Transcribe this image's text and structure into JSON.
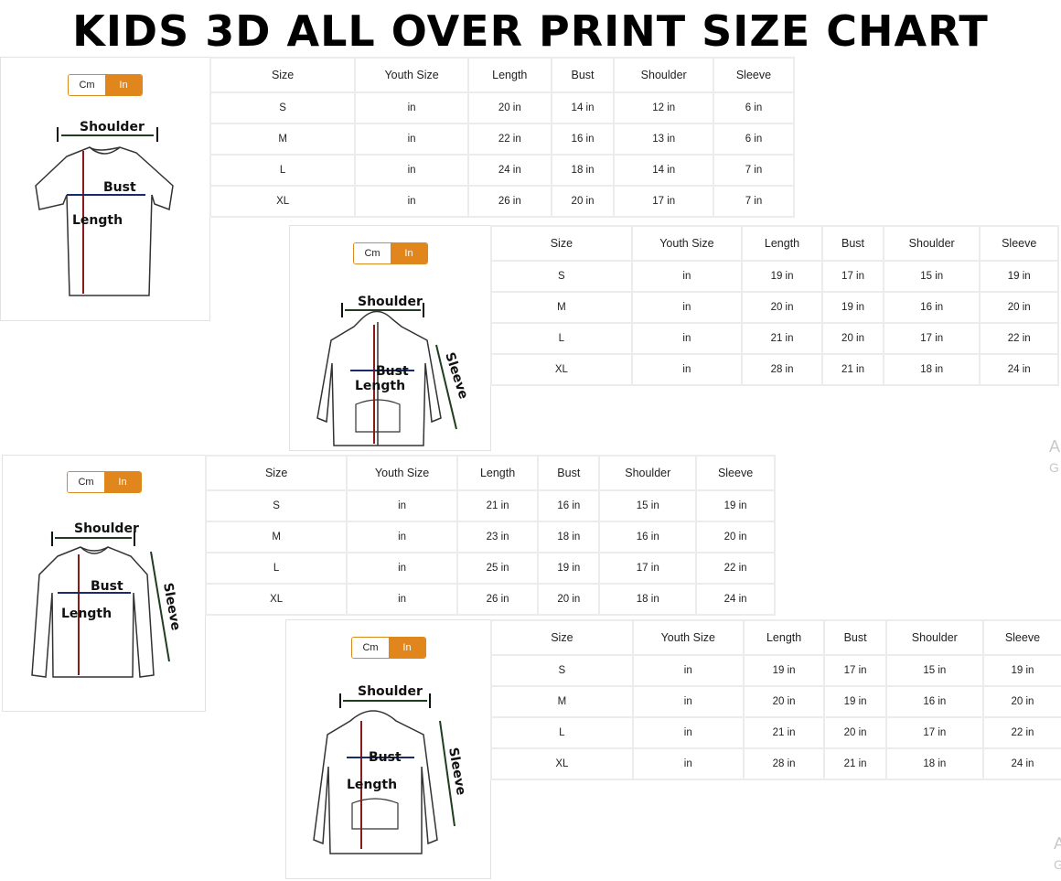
{
  "title": "KIDS 3D ALL OVER PRINT SIZE CHART",
  "toggle": {
    "cm": "Cm",
    "in": "In",
    "active": "In"
  },
  "colors": {
    "toggle_active": "#e0861d",
    "length_arrow": "#8b1a1a",
    "bust_arrow": "#1a2a6b",
    "shoulder_arrow": "#1f3d1f"
  },
  "labels": {
    "shoulder": "Shoulder",
    "bust": "Bust",
    "length": "Length",
    "sleeve": "Sleeve"
  },
  "edge_text": {
    "a1": "A",
    "g1": "G",
    "a2": "A",
    "g2": "G"
  },
  "charts": [
    {
      "garment": "t-shirt",
      "headers": [
        "Size",
        "Youth Size",
        "Length",
        "Bust",
        "Shoulder",
        "Sleeve"
      ],
      "rows": [
        [
          "S",
          "in",
          "20 in",
          "14 in",
          "12 in",
          "6 in"
        ],
        [
          "M",
          "in",
          "22 in",
          "16 in",
          "13 in",
          "6 in"
        ],
        [
          "L",
          "in",
          "24 in",
          "18 in",
          "14 in",
          "7 in"
        ],
        [
          "XL",
          "in",
          "26 in",
          "20 in",
          "17 in",
          "7 in"
        ]
      ]
    },
    {
      "garment": "zip-hoodie",
      "headers": [
        "Size",
        "Youth Size",
        "Length",
        "Bust",
        "Shoulder",
        "Sleeve"
      ],
      "rows": [
        [
          "S",
          "in",
          "19 in",
          "17 in",
          "15 in",
          "19 in"
        ],
        [
          "M",
          "in",
          "20 in",
          "19 in",
          "16 in",
          "20 in"
        ],
        [
          "L",
          "in",
          "21 in",
          "20 in",
          "17 in",
          "22 in"
        ],
        [
          "XL",
          "in",
          "28 in",
          "21 in",
          "18 in",
          "24 in"
        ]
      ]
    },
    {
      "garment": "long-sleeve-shirt",
      "headers": [
        "Size",
        "Youth Size",
        "Length",
        "Bust",
        "Shoulder",
        "Sleeve"
      ],
      "rows": [
        [
          "S",
          "in",
          "21 in",
          "16 in",
          "15 in",
          "19 in"
        ],
        [
          "M",
          "in",
          "23 in",
          "18 in",
          "16 in",
          "20 in"
        ],
        [
          "L",
          "in",
          "25 in",
          "19 in",
          "17 in",
          "22 in"
        ],
        [
          "XL",
          "in",
          "26 in",
          "20 in",
          "18 in",
          "24 in"
        ]
      ]
    },
    {
      "garment": "pullover-hoodie",
      "headers": [
        "Size",
        "Youth Size",
        "Length",
        "Bust",
        "Shoulder",
        "Sleeve"
      ],
      "rows": [
        [
          "S",
          "in",
          "19 in",
          "17 in",
          "15 in",
          "19 in"
        ],
        [
          "M",
          "in",
          "20 in",
          "19 in",
          "16 in",
          "20 in"
        ],
        [
          "L",
          "in",
          "21 in",
          "20 in",
          "17 in",
          "22 in"
        ],
        [
          "XL",
          "in",
          "28 in",
          "21 in",
          "18 in",
          "24 in"
        ]
      ]
    }
  ]
}
